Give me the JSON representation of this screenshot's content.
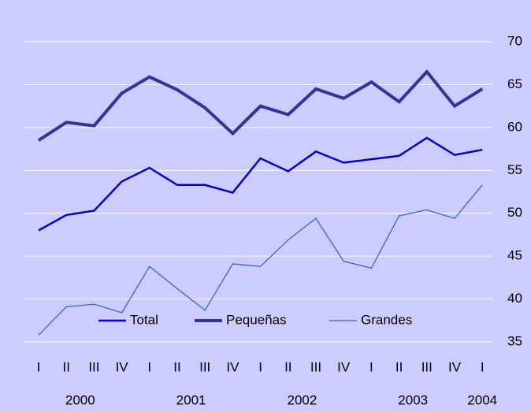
{
  "chart_data": {
    "type": "line",
    "categories": [
      "I",
      "II",
      "III",
      "IV",
      "I",
      "II",
      "III",
      "IV",
      "I",
      "II",
      "III",
      "IV",
      "I",
      "II",
      "III",
      "IV",
      "I"
    ],
    "years": [
      "2000",
      null,
      null,
      null,
      "2001",
      null,
      null,
      null,
      "2002",
      null,
      null,
      null,
      "2003",
      null,
      null,
      null,
      "2004"
    ],
    "series": [
      {
        "name": "Total",
        "color": "#0000cc",
        "line_width": 2.5,
        "values": [
          48.0,
          49.8,
          50.3,
          53.7,
          55.3,
          53.3,
          53.3,
          52.4,
          56.4,
          54.9,
          57.2,
          55.9,
          56.3,
          56.7,
          58.8,
          56.8,
          57.4
        ]
      },
      {
        "name": "Pequeñas",
        "color": "#333399",
        "line_width": 4,
        "values": [
          58.5,
          60.6,
          60.2,
          64.0,
          65.9,
          64.4,
          62.3,
          59.3,
          62.5,
          61.5,
          64.5,
          63.4,
          65.3,
          63.0,
          66.5,
          62.5,
          64.5
        ]
      },
      {
        "name": "Grandes",
        "color": "#3366cc",
        "line_width": 1.3,
        "values": [
          35.8,
          39.1,
          39.4,
          38.4,
          43.8,
          41.2,
          38.7,
          44.1,
          43.8,
          46.9,
          49.4,
          44.4,
          43.6,
          49.7,
          50.4,
          49.4,
          53.3
        ]
      }
    ],
    "ylim": [
      35,
      70
    ],
    "yticks": [
      35,
      40,
      45,
      50,
      55,
      60,
      65,
      70
    ],
    "y_axis_side": "right",
    "grid": true,
    "legend": "lower center"
  }
}
